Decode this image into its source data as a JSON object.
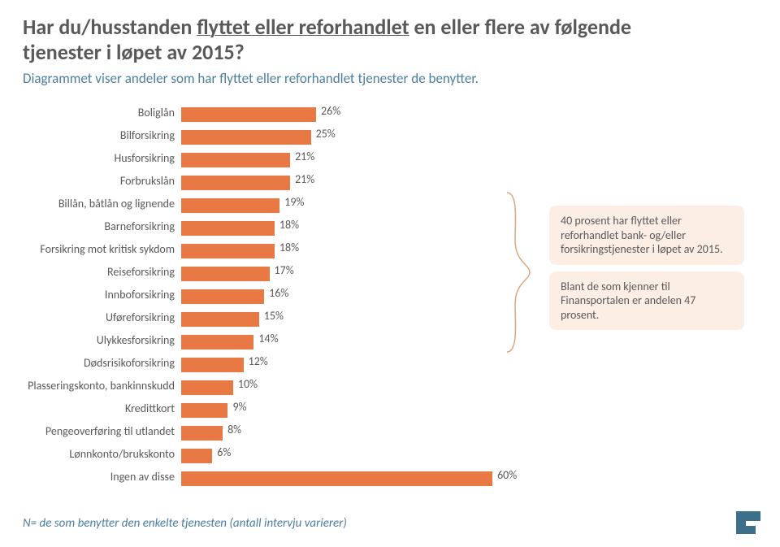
{
  "title_pre": "Har du/husstanden ",
  "title_underline": "flyttet eller reforhandlet",
  "title_post": " en eller flere av følgende tjenester i løpet av 2015?",
  "subtitle": "Diagrammet viser andeler som har flyttet eller reforhandlet tjenester de benytter.",
  "chart": {
    "type": "bar",
    "xlim": [
      0,
      65
    ],
    "bar_color": "#e87945",
    "text_color": "#595959",
    "rows": [
      {
        "label": "Boliglån",
        "value": 26,
        "val_label": "26%"
      },
      {
        "label": "Bilforsikring",
        "value": 25,
        "val_label": "25%"
      },
      {
        "label": "Husforsikring",
        "value": 21,
        "val_label": "21%"
      },
      {
        "label": "Forbrukslån",
        "value": 21,
        "val_label": "21%"
      },
      {
        "label": "Billån, båtlån og lignende",
        "value": 19,
        "val_label": "19%"
      },
      {
        "label": "Barneforsikring",
        "value": 18,
        "val_label": "18%"
      },
      {
        "label": "Forsikring mot kritisk sykdom",
        "value": 18,
        "val_label": "18%"
      },
      {
        "label": "Reiseforsikring",
        "value": 17,
        "val_label": "17%"
      },
      {
        "label": "Innboforsikring",
        "value": 16,
        "val_label": "16%"
      },
      {
        "label": "Uføreforsikring",
        "value": 15,
        "val_label": "15%"
      },
      {
        "label": "Ulykkesforsikring",
        "value": 14,
        "val_label": "14%"
      },
      {
        "label": "Dødsrisikoforsikring",
        "value": 12,
        "val_label": "12%"
      },
      {
        "label": "Plasseringskonto, bankinnskudd",
        "value": 10,
        "val_label": "10%"
      },
      {
        "label": "Kredittkort",
        "value": 9,
        "val_label": "9%"
      },
      {
        "label": "Pengeoverføring til utlandet",
        "value": 8,
        "val_label": "8%"
      },
      {
        "label": "Lønnkonto/brukskonto",
        "value": 6,
        "val_label": "6%"
      },
      {
        "label": "Ingen av disse",
        "value": 60,
        "val_label": "60%"
      }
    ]
  },
  "notes": {
    "bg": "#fdeee5",
    "n1": "40 prosent har flyttet eller reforhandlet bank- og/eller forsikringstjenester i løpet av 2015.",
    "n2": "Blant de som kjenner til Finansportalen er andelen 47 prosent."
  },
  "brace": {
    "stroke": "#d9a77e",
    "width": 1.5
  },
  "footnote": "N= de som benytter den enkelte tjenesten (antall intervju varierer)",
  "logo_fill": "#3b6f8a"
}
